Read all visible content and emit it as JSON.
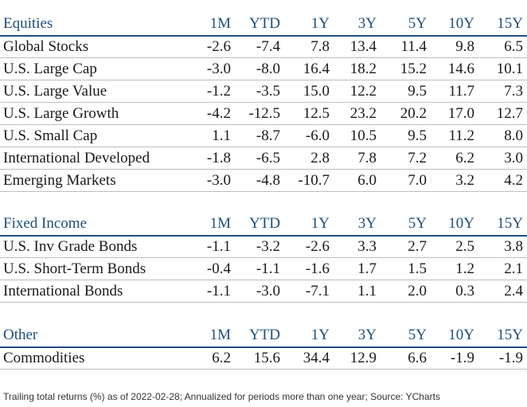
{
  "columns": [
    "1M",
    "YTD",
    "1Y",
    "3Y",
    "5Y",
    "10Y",
    "15Y"
  ],
  "equities": {
    "title": "Equities",
    "rows": [
      {
        "name": "Global Stocks",
        "values": [
          "-2.6",
          "-7.4",
          "7.8",
          "13.4",
          "11.4",
          "9.8",
          "6.5"
        ]
      },
      {
        "name": "U.S. Large Cap",
        "values": [
          "-3.0",
          "-8.0",
          "16.4",
          "18.2",
          "15.2",
          "14.6",
          "10.1"
        ]
      },
      {
        "name": "U.S. Large Value",
        "values": [
          "-1.2",
          "-3.5",
          "15.0",
          "12.2",
          "9.5",
          "11.7",
          "7.3"
        ]
      },
      {
        "name": "U.S. Large Growth",
        "values": [
          "-4.2",
          "-12.5",
          "12.5",
          "23.2",
          "20.2",
          "17.0",
          "12.7"
        ]
      },
      {
        "name": "U.S. Small Cap",
        "values": [
          "1.1",
          "-8.7",
          "-6.0",
          "10.5",
          "9.5",
          "11.2",
          "8.0"
        ]
      },
      {
        "name": "International Developed",
        "values": [
          "-1.8",
          "-6.5",
          "2.8",
          "7.8",
          "7.2",
          "6.2",
          "3.0"
        ]
      },
      {
        "name": "Emerging Markets",
        "values": [
          "-3.0",
          "-4.8",
          "-10.7",
          "6.0",
          "7.0",
          "3.2",
          "4.2"
        ]
      }
    ]
  },
  "fixed_income": {
    "title": "Fixed Income",
    "rows": [
      {
        "name": "U.S. Inv Grade Bonds",
        "values": [
          "-1.1",
          "-3.2",
          "-2.6",
          "3.3",
          "2.7",
          "2.5",
          "3.8"
        ]
      },
      {
        "name": "U.S. Short-Term Bonds",
        "values": [
          "-0.4",
          "-1.1",
          "-1.6",
          "1.7",
          "1.5",
          "1.2",
          "2.1"
        ]
      },
      {
        "name": "International Bonds",
        "values": [
          "-1.1",
          "-3.0",
          "-7.1",
          "1.1",
          "2.0",
          "0.3",
          "2.4"
        ]
      }
    ]
  },
  "other": {
    "title": "Other",
    "rows": [
      {
        "name": "Commodities",
        "values": [
          "6.2",
          "15.6",
          "34.4",
          "12.9",
          "6.6",
          "-1.9",
          "-1.9"
        ]
      }
    ]
  },
  "footnote": "Trailing total returns (%) as of 2022-02-28; Annualized for periods more than one year; Source: YCharts",
  "colors": {
    "header_text": "#1f4e79",
    "header_rule": "#1f4e79",
    "row_rule": "#bdbdbd"
  }
}
